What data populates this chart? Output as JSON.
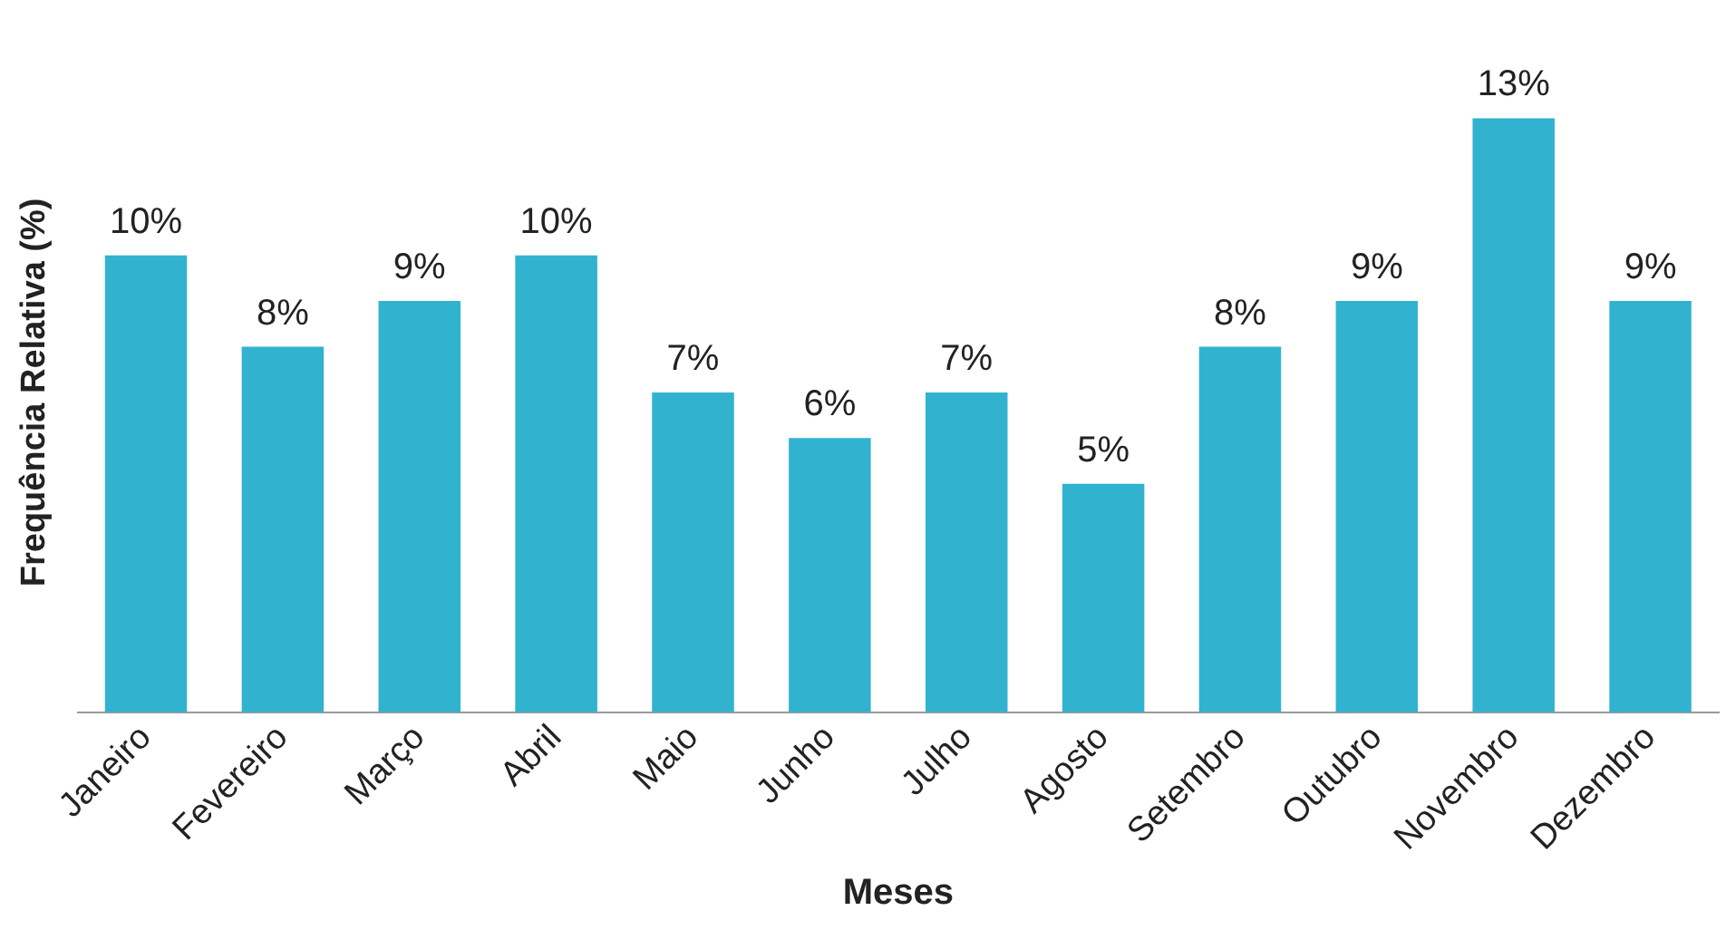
{
  "chart_data": {
    "type": "bar",
    "xlabel": "Meses",
    "ylabel": "Frequência Relativa (%)",
    "categories": [
      "Janeiro",
      "Fevereiro",
      "Março",
      "Abril",
      "Maio",
      "Junho",
      "Julho",
      "Agosto",
      "Setembro",
      "Outubro",
      "Novembro",
      "Dezembro"
    ],
    "values": [
      10,
      8,
      9,
      10,
      7,
      6,
      7,
      5,
      8,
      9,
      13,
      9
    ],
    "value_labels": [
      "10%",
      "8%",
      "9%",
      "10%",
      "7%",
      "6%",
      "7%",
      "5%",
      "8%",
      "9%",
      "13%",
      "9%"
    ],
    "color": "#31b3d0",
    "grid": false,
    "legend": false
  }
}
